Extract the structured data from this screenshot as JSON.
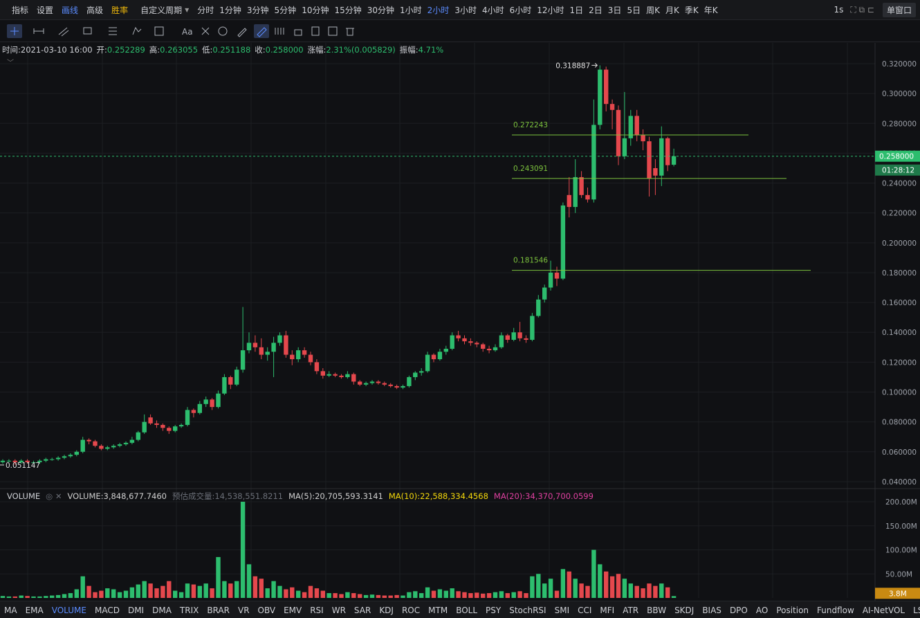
{
  "toolbar": {
    "items": [
      "指标",
      "设置",
      "画线",
      "高级",
      "胜率"
    ],
    "period_menu": "自定义周期",
    "periods": [
      "分时",
      "1分钟",
      "3分钟",
      "5分钟",
      "10分钟",
      "15分钟",
      "30分钟",
      "1小时",
      "2小时",
      "3小时",
      "4小时",
      "6小时",
      "12小时",
      "1日",
      "2日",
      "3日",
      "5日",
      "周K",
      "月K",
      "季K",
      "年K"
    ],
    "active_period": "2小时",
    "interval": "1s",
    "window": "单窗口"
  },
  "draw_toolbar": {
    "text_tool": "Aa"
  },
  "info": [
    {
      "label": "时间:",
      "value": "2021-03-10 16:00"
    },
    {
      "label": "开:",
      "value": "0.252289"
    },
    {
      "label": "高:",
      "value": "0.263055"
    },
    {
      "label": "低:",
      "value": "0.251188"
    },
    {
      "label": "收:",
      "value": "0.258000"
    },
    {
      "label": "涨幅:",
      "value": "2.31%(0.005829)"
    },
    {
      "label": "振幅:",
      "value": "4.71%"
    }
  ],
  "chart_data": {
    "type": "candlestick",
    "up_color": "#2dbd6e",
    "down_color": "#e5484d",
    "grid": true,
    "ylim": [
      0.0358,
      0.3339
    ],
    "yticks": [
      {
        "value": 0.32,
        "label": "0.320000"
      },
      {
        "value": 0.3,
        "label": "0.300000"
      },
      {
        "value": 0.28,
        "label": "0.280000"
      },
      {
        "value": 0.26,
        "label": "0.260000"
      },
      {
        "value": 0.24,
        "label": "0.240000"
      },
      {
        "value": 0.22,
        "label": "0.220000"
      },
      {
        "value": 0.2,
        "label": "0.200000"
      },
      {
        "value": 0.18,
        "label": "0.180000"
      },
      {
        "value": 0.16,
        "label": "0.160000"
      },
      {
        "value": 0.14,
        "label": "0.140000"
      },
      {
        "value": 0.12,
        "label": "0.120000"
      },
      {
        "value": 0.1,
        "label": "0.100000"
      },
      {
        "value": 0.08,
        "label": "0.080000"
      },
      {
        "value": 0.06,
        "label": "0.060000"
      },
      {
        "value": 0.04,
        "label": "0.040000"
      }
    ],
    "candles": [
      [
        0.053,
        0.055,
        0.052,
        0.054
      ],
      [
        0.054,
        0.055,
        0.053,
        0.054
      ],
      [
        0.054,
        0.055,
        0.051147,
        0.053
      ],
      [
        0.053,
        0.055,
        0.052,
        0.054
      ],
      [
        0.054,
        0.055,
        0.052,
        0.053
      ],
      [
        0.053,
        0.054,
        0.052,
        0.053
      ],
      [
        0.053,
        0.055,
        0.052,
        0.054
      ],
      [
        0.054,
        0.056,
        0.053,
        0.055
      ],
      [
        0.055,
        0.056,
        0.054,
        0.055
      ],
      [
        0.055,
        0.057,
        0.054,
        0.056
      ],
      [
        0.056,
        0.058,
        0.055,
        0.057
      ],
      [
        0.057,
        0.059,
        0.056,
        0.058
      ],
      [
        0.058,
        0.061,
        0.057,
        0.06
      ],
      [
        0.06,
        0.07,
        0.059,
        0.068
      ],
      [
        0.068,
        0.069,
        0.065,
        0.067
      ],
      [
        0.067,
        0.068,
        0.063,
        0.064
      ],
      [
        0.064,
        0.065,
        0.061,
        0.062
      ],
      [
        0.062,
        0.064,
        0.061,
        0.063
      ],
      [
        0.063,
        0.065,
        0.062,
        0.064
      ],
      [
        0.064,
        0.066,
        0.063,
        0.065
      ],
      [
        0.065,
        0.067,
        0.064,
        0.066
      ],
      [
        0.066,
        0.07,
        0.065,
        0.068
      ],
      [
        0.068,
        0.074,
        0.067,
        0.073
      ],
      [
        0.073,
        0.085,
        0.072,
        0.08
      ],
      [
        0.083,
        0.085,
        0.078,
        0.079
      ],
      [
        0.079,
        0.081,
        0.076,
        0.078
      ],
      [
        0.078,
        0.079,
        0.074,
        0.076
      ],
      [
        0.076,
        0.077,
        0.072,
        0.074
      ],
      [
        0.074,
        0.078,
        0.073,
        0.077
      ],
      [
        0.077,
        0.079,
        0.076,
        0.078
      ],
      [
        0.078,
        0.09,
        0.077,
        0.088
      ],
      [
        0.088,
        0.089,
        0.083,
        0.086
      ],
      [
        0.086,
        0.094,
        0.085,
        0.092
      ],
      [
        0.092,
        0.097,
        0.09,
        0.095
      ],
      [
        0.095,
        0.096,
        0.088,
        0.09
      ],
      [
        0.09,
        0.101,
        0.089,
        0.099
      ],
      [
        0.099,
        0.112,
        0.098,
        0.11
      ],
      [
        0.11,
        0.111,
        0.102,
        0.105
      ],
      [
        0.105,
        0.117,
        0.104,
        0.115
      ],
      [
        0.115,
        0.157,
        0.113,
        0.128
      ],
      [
        0.128,
        0.14,
        0.126,
        0.133
      ],
      [
        0.133,
        0.138,
        0.127,
        0.13
      ],
      [
        0.13,
        0.136,
        0.122,
        0.125
      ],
      [
        0.125,
        0.13,
        0.121,
        0.127
      ],
      [
        0.127,
        0.137,
        0.11,
        0.133
      ],
      [
        0.133,
        0.14,
        0.131,
        0.138
      ],
      [
        0.138,
        0.141,
        0.123,
        0.125
      ],
      [
        0.125,
        0.128,
        0.118,
        0.122
      ],
      [
        0.122,
        0.13,
        0.12,
        0.128
      ],
      [
        0.128,
        0.13,
        0.123,
        0.125
      ],
      [
        0.125,
        0.127,
        0.118,
        0.12
      ],
      [
        0.12,
        0.122,
        0.112,
        0.114
      ],
      [
        0.114,
        0.116,
        0.109,
        0.111
      ],
      [
        0.111,
        0.114,
        0.11,
        0.112
      ],
      [
        0.112,
        0.113,
        0.11,
        0.111
      ],
      [
        0.111,
        0.112,
        0.109,
        0.11
      ],
      [
        0.11,
        0.114,
        0.109,
        0.112
      ],
      [
        0.112,
        0.113,
        0.105,
        0.107
      ],
      [
        0.107,
        0.108,
        0.104,
        0.105
      ],
      [
        0.105,
        0.107,
        0.104,
        0.106
      ],
      [
        0.106,
        0.108,
        0.105,
        0.107
      ],
      [
        0.107,
        0.108,
        0.105,
        0.106
      ],
      [
        0.106,
        0.107,
        0.104,
        0.105
      ],
      [
        0.105,
        0.106,
        0.103,
        0.104
      ],
      [
        0.104,
        0.105,
        0.102,
        0.103
      ],
      [
        0.103,
        0.105,
        0.102,
        0.104
      ],
      [
        0.104,
        0.111,
        0.103,
        0.11
      ],
      [
        0.11,
        0.114,
        0.108,
        0.113
      ],
      [
        0.113,
        0.116,
        0.111,
        0.114
      ],
      [
        0.114,
        0.127,
        0.113,
        0.125
      ],
      [
        0.125,
        0.126,
        0.12,
        0.122
      ],
      [
        0.122,
        0.129,
        0.121,
        0.127
      ],
      [
        0.127,
        0.131,
        0.125,
        0.129
      ],
      [
        0.129,
        0.14,
        0.128,
        0.138
      ],
      [
        0.138,
        0.141,
        0.134,
        0.136
      ],
      [
        0.136,
        0.138,
        0.132,
        0.134
      ],
      [
        0.134,
        0.136,
        0.131,
        0.133
      ],
      [
        0.133,
        0.134,
        0.13,
        0.132
      ],
      [
        0.132,
        0.133,
        0.127,
        0.129
      ],
      [
        0.129,
        0.131,
        0.126,
        0.128
      ],
      [
        0.128,
        0.132,
        0.127,
        0.13
      ],
      [
        0.13,
        0.14,
        0.129,
        0.138
      ],
      [
        0.138,
        0.139,
        0.133,
        0.135
      ],
      [
        0.135,
        0.143,
        0.134,
        0.14
      ],
      [
        0.14,
        0.147,
        0.134,
        0.136
      ],
      [
        0.136,
        0.138,
        0.133,
        0.135
      ],
      [
        0.135,
        0.153,
        0.134,
        0.151
      ],
      [
        0.151,
        0.165,
        0.15,
        0.162
      ],
      [
        0.162,
        0.172,
        0.16,
        0.17
      ],
      [
        0.17,
        0.188,
        0.168,
        0.18
      ],
      [
        0.18,
        0.184,
        0.171,
        0.176
      ],
      [
        0.176,
        0.227,
        0.175,
        0.225
      ],
      [
        0.232,
        0.244,
        0.217,
        0.224
      ],
      [
        0.224,
        0.256,
        0.22,
        0.244
      ],
      [
        0.244,
        0.248,
        0.23,
        0.232
      ],
      [
        0.232,
        0.237,
        0.227,
        0.229
      ],
      [
        0.229,
        0.296,
        0.227,
        0.279
      ],
      [
        0.279,
        0.318887,
        0.276,
        0.316
      ],
      [
        0.316,
        0.318,
        0.288,
        0.293
      ],
      [
        0.293,
        0.296,
        0.276,
        0.289
      ],
      [
        0.289,
        0.292,
        0.252,
        0.258
      ],
      [
        0.258,
        0.301,
        0.256,
        0.27
      ],
      [
        0.27,
        0.289,
        0.265,
        0.285
      ],
      [
        0.285,
        0.289,
        0.268,
        0.272
      ],
      [
        0.272,
        0.276,
        0.262,
        0.268
      ],
      [
        0.268,
        0.271,
        0.231,
        0.243
      ],
      [
        0.25,
        0.256,
        0.232,
        0.245
      ],
      [
        0.245,
        0.278,
        0.238,
        0.27
      ],
      [
        0.27,
        0.271,
        0.248,
        0.252
      ],
      [
        0.252289,
        0.263055,
        0.251188,
        0.258
      ]
    ],
    "high_label": "0.318887",
    "low_label": "0.051147",
    "fib_levels": [
      {
        "value": 0.272243,
        "label": "0.272243"
      },
      {
        "value": 0.243091,
        "label": "0.243091"
      },
      {
        "value": 0.181546,
        "label": "0.181546"
      }
    ],
    "last_price": {
      "value": 0.258,
      "label": "0.258000"
    },
    "countdown": "01:28:12"
  },
  "volume": {
    "title": "VOLUME",
    "legend": [
      {
        "text": "VOLUME:3,848,677.7460",
        "color": "#d0d0d0"
      },
      {
        "text": "预估成交量:14,538,551.8211",
        "color": "#6b6f78"
      },
      {
        "text": "MA(5):20,705,593.3141",
        "color": "#d0d0d0"
      },
      {
        "text": "MA(10):22,588,334.4568",
        "color": "#f5d90a"
      },
      {
        "text": "MA(20):34,370,700.0599",
        "color": "#e040a0"
      }
    ],
    "ylim": [
      0,
      225.9
    ],
    "yticks": [
      {
        "value": 200,
        "label": "200.00M"
      },
      {
        "value": 150,
        "label": "150.00M"
      },
      {
        "value": 100,
        "label": "100.00M"
      },
      {
        "value": 50,
        "label": "50.00M"
      }
    ],
    "values": [
      4,
      3,
      3,
      5,
      4,
      3,
      3,
      4,
      5,
      6,
      8,
      10,
      18,
      45,
      25,
      12,
      15,
      20,
      18,
      12,
      15,
      22,
      28,
      35,
      30,
      20,
      25,
      35,
      15,
      12,
      30,
      28,
      25,
      30,
      20,
      85,
      35,
      30,
      35,
      200,
      70,
      45,
      40,
      20,
      35,
      25,
      18,
      22,
      15,
      12,
      25,
      20,
      15,
      10,
      10,
      8,
      12,
      10,
      8,
      6,
      7,
      6,
      5,
      5,
      6,
      5,
      12,
      14,
      10,
      22,
      15,
      18,
      15,
      20,
      14,
      12,
      10,
      11,
      9,
      10,
      12,
      14,
      10,
      12,
      14,
      10,
      45,
      50,
      30,
      40,
      15,
      60,
      55,
      40,
      30,
      25,
      100,
      70,
      55,
      45,
      50,
      40,
      30,
      25,
      20,
      30,
      25,
      30,
      22,
      3.8486777
    ],
    "last_label": "3.8M"
  },
  "indicators": [
    "MA",
    "EMA",
    "VOLUME",
    "MACD",
    "DMI",
    "DMA",
    "TRIX",
    "BRAR",
    "VR",
    "OBV",
    "EMV",
    "RSI",
    "WR",
    "SAR",
    "KDJ",
    "ROC",
    "MTM",
    "BOLL",
    "PSY",
    "StochRSI",
    "SMI",
    "CCI",
    "MFI",
    "ATR",
    "BBW",
    "SKDJ",
    "BIAS",
    "DPO",
    "AO",
    "Position",
    "Fundflow",
    "AI-NetVOL",
    "LSUR"
  ],
  "active_indicator": "VOLUME"
}
